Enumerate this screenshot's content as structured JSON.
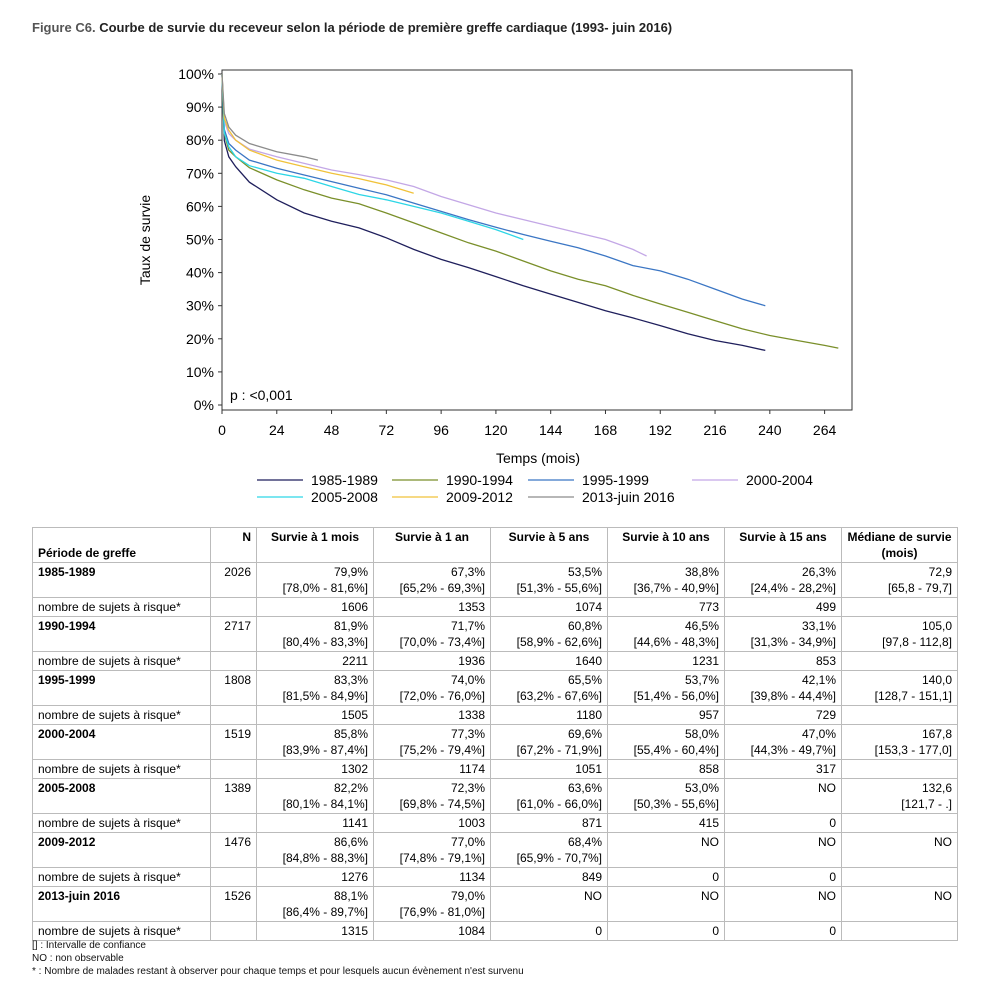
{
  "figure": {
    "number": "Figure C6.",
    "title": "Courbe de survie du receveur selon la période de première greffe cardiaque (1993- juin 2016)"
  },
  "colors": {
    "1985-1989": "#1f1f5c",
    "1990-1994": "#7a8f2a",
    "1995-1999": "#3b76c4",
    "2000-2004": "#c3a7e6",
    "2005-2008": "#2dd6e6",
    "2009-2012": "#f0c23a",
    "2013-juin 2016": "#8c8c8c"
  },
  "chart_data": {
    "type": "line",
    "xlabel": "Temps (mois)",
    "ylabel": "Taux de survie",
    "xlim": [
      0,
      276
    ],
    "ylim": [
      0,
      100
    ],
    "x_ticks": [
      "0",
      "24",
      "48",
      "72",
      "96",
      "120",
      "144",
      "168",
      "192",
      "216",
      "240",
      "264"
    ],
    "y_ticks": [
      "0%",
      "10%",
      "20%",
      "30%",
      "40%",
      "50%",
      "60%",
      "70%",
      "80%",
      "90%",
      "100%"
    ],
    "annotation": "p : <0,001",
    "legend_position": "bottom",
    "series": [
      {
        "name": "1985-1989",
        "points": [
          [
            0,
            100
          ],
          [
            1,
            79.9
          ],
          [
            3,
            75
          ],
          [
            6,
            72
          ],
          [
            12,
            67.3
          ],
          [
            24,
            62
          ],
          [
            36,
            58
          ],
          [
            48,
            55.5
          ],
          [
            60,
            53.5
          ],
          [
            72,
            50.5
          ],
          [
            84,
            47
          ],
          [
            96,
            44
          ],
          [
            108,
            41.5
          ],
          [
            120,
            38.8
          ],
          [
            132,
            36
          ],
          [
            144,
            33.5
          ],
          [
            156,
            31
          ],
          [
            168,
            28.5
          ],
          [
            180,
            26.3
          ],
          [
            192,
            24
          ],
          [
            204,
            21.5
          ],
          [
            216,
            19.5
          ],
          [
            228,
            18
          ],
          [
            238,
            16.5
          ]
        ]
      },
      {
        "name": "1990-1994",
        "points": [
          [
            0,
            100
          ],
          [
            1,
            81.9
          ],
          [
            3,
            77
          ],
          [
            6,
            75
          ],
          [
            12,
            71.7
          ],
          [
            24,
            68
          ],
          [
            36,
            65
          ],
          [
            48,
            62.5
          ],
          [
            60,
            60.8
          ],
          [
            72,
            58
          ],
          [
            84,
            55
          ],
          [
            96,
            52
          ],
          [
            108,
            49
          ],
          [
            120,
            46.5
          ],
          [
            132,
            43.5
          ],
          [
            144,
            40.5
          ],
          [
            156,
            38
          ],
          [
            168,
            36
          ],
          [
            180,
            33.1
          ],
          [
            192,
            30.5
          ],
          [
            204,
            28
          ],
          [
            216,
            25.5
          ],
          [
            228,
            23
          ],
          [
            240,
            21
          ],
          [
            252,
            19.5
          ],
          [
            264,
            18
          ],
          [
            270,
            17.2
          ]
        ]
      },
      {
        "name": "1995-1999",
        "points": [
          [
            0,
            100
          ],
          [
            1,
            83.3
          ],
          [
            3,
            79
          ],
          [
            6,
            77
          ],
          [
            12,
            74
          ],
          [
            24,
            71.5
          ],
          [
            36,
            69.5
          ],
          [
            48,
            67.5
          ],
          [
            60,
            65.5
          ],
          [
            72,
            63.5
          ],
          [
            84,
            61
          ],
          [
            96,
            58.5
          ],
          [
            108,
            56
          ],
          [
            120,
            53.7
          ],
          [
            132,
            51.5
          ],
          [
            144,
            49.5
          ],
          [
            156,
            47.5
          ],
          [
            168,
            45
          ],
          [
            180,
            42.1
          ],
          [
            192,
            40.5
          ],
          [
            204,
            38
          ],
          [
            216,
            35
          ],
          [
            228,
            32
          ],
          [
            238,
            30
          ]
        ]
      },
      {
        "name": "2000-2004",
        "points": [
          [
            0,
            100
          ],
          [
            1,
            85.8
          ],
          [
            3,
            82
          ],
          [
            6,
            80
          ],
          [
            12,
            77.3
          ],
          [
            24,
            75
          ],
          [
            36,
            73
          ],
          [
            48,
            71
          ],
          [
            60,
            69.6
          ],
          [
            72,
            68
          ],
          [
            84,
            66
          ],
          [
            96,
            63
          ],
          [
            108,
            60.5
          ],
          [
            120,
            58
          ],
          [
            132,
            56
          ],
          [
            144,
            54
          ],
          [
            156,
            52
          ],
          [
            168,
            50
          ],
          [
            180,
            47
          ],
          [
            186,
            45
          ]
        ]
      },
      {
        "name": "2005-2008",
        "points": [
          [
            0,
            100
          ],
          [
            1,
            82.2
          ],
          [
            3,
            78
          ],
          [
            6,
            75
          ],
          [
            12,
            72.3
          ],
          [
            24,
            70
          ],
          [
            36,
            68.5
          ],
          [
            48,
            66
          ],
          [
            60,
            63.6
          ],
          [
            72,
            62
          ],
          [
            84,
            60
          ],
          [
            96,
            58
          ],
          [
            108,
            55.5
          ],
          [
            120,
            53
          ],
          [
            132,
            50
          ]
        ]
      },
      {
        "name": "2009-2012",
        "points": [
          [
            0,
            100
          ],
          [
            1,
            86.6
          ],
          [
            3,
            83
          ],
          [
            6,
            80
          ],
          [
            12,
            77
          ],
          [
            24,
            74
          ],
          [
            36,
            72
          ],
          [
            48,
            70
          ],
          [
            60,
            68.4
          ],
          [
            72,
            66.5
          ],
          [
            84,
            64
          ]
        ]
      },
      {
        "name": "2013-juin 2016",
        "points": [
          [
            0,
            100
          ],
          [
            1,
            88.1
          ],
          [
            3,
            84
          ],
          [
            6,
            81.5
          ],
          [
            12,
            79
          ],
          [
            24,
            76.5
          ],
          [
            36,
            75
          ],
          [
            42,
            74
          ]
        ]
      }
    ]
  },
  "table": {
    "headers": {
      "period": "Période de greffe",
      "n": "N",
      "c1": "Survie à 1 mois",
      "c2": "Survie à 1 an",
      "c3": "Survie à 5 ans",
      "c4": "Survie à 10 ans",
      "c5": "Survie à 15 ans",
      "c6": "Médiane de survie (mois)"
    },
    "risk_label": "nombre de sujets à risque*",
    "rows": [
      {
        "period": "1985-1989",
        "n": "2026",
        "v": [
          "79,9%",
          "67,3%",
          "53,5%",
          "38,8%",
          "26,3%",
          "72,9"
        ],
        "ci": [
          "[78,0% - 81,6%]",
          "[65,2% - 69,3%]",
          "[51,3% - 55,6%]",
          "[36,7% - 40,9%]",
          "[24,4% - 28,2%]",
          "[65,8 - 79,7]"
        ],
        "risk": [
          "1606",
          "1353",
          "1074",
          "773",
          "499"
        ]
      },
      {
        "period": "1990-1994",
        "n": "2717",
        "v": [
          "81,9%",
          "71,7%",
          "60,8%",
          "46,5%",
          "33,1%",
          "105,0"
        ],
        "ci": [
          "[80,4% - 83,3%]",
          "[70,0% - 73,4%]",
          "[58,9% - 62,6%]",
          "[44,6% - 48,3%]",
          "[31,3% - 34,9%]",
          "[97,8 - 112,8]"
        ],
        "risk": [
          "2211",
          "1936",
          "1640",
          "1231",
          "853"
        ]
      },
      {
        "period": "1995-1999",
        "n": "1808",
        "v": [
          "83,3%",
          "74,0%",
          "65,5%",
          "53,7%",
          "42,1%",
          "140,0"
        ],
        "ci": [
          "[81,5% - 84,9%]",
          "[72,0% - 76,0%]",
          "[63,2% - 67,6%]",
          "[51,4% - 56,0%]",
          "[39,8% - 44,4%]",
          "[128,7 - 151,1]"
        ],
        "risk": [
          "1505",
          "1338",
          "1180",
          "957",
          "729"
        ]
      },
      {
        "period": "2000-2004",
        "n": "1519",
        "v": [
          "85,8%",
          "77,3%",
          "69,6%",
          "58,0%",
          "47,0%",
          "167,8"
        ],
        "ci": [
          "[83,9% - 87,4%]",
          "[75,2% - 79,4%]",
          "[67,2% - 71,9%]",
          "[55,4% - 60,4%]",
          "[44,3% - 49,7%]",
          "[153,3 - 177,0]"
        ],
        "risk": [
          "1302",
          "1174",
          "1051",
          "858",
          "317"
        ]
      },
      {
        "period": "2005-2008",
        "n": "1389",
        "v": [
          "82,2%",
          "72,3%",
          "63,6%",
          "53,0%",
          "NO",
          "132,6"
        ],
        "ci": [
          "[80,1% - 84,1%]",
          "[69,8% - 74,5%]",
          "[61,0% - 66,0%]",
          "[50,3% - 55,6%]",
          "",
          "[121,7 - .]"
        ],
        "risk": [
          "1141",
          "1003",
          "871",
          "415",
          "0"
        ]
      },
      {
        "period": "2009-2012",
        "n": "1476",
        "v": [
          "86,6%",
          "77,0%",
          "68,4%",
          "NO",
          "NO",
          "NO"
        ],
        "ci": [
          "[84,8% - 88,3%]",
          "[74,8% - 79,1%]",
          "[65,9% - 70,7%]",
          "",
          "",
          ""
        ],
        "risk": [
          "1276",
          "1134",
          "849",
          "0",
          "0"
        ]
      },
      {
        "period": "2013-juin 2016",
        "n": "1526",
        "v": [
          "88,1%",
          "79,0%",
          "NO",
          "NO",
          "NO",
          "NO"
        ],
        "ci": [
          "[86,4% - 89,7%]",
          "[76,9% - 81,0%]",
          "",
          "",
          "",
          ""
        ],
        "risk": [
          "1315",
          "1084",
          "0",
          "0",
          "0"
        ]
      }
    ]
  },
  "notes": [
    "[] : Intervalle de confiance",
    "NO : non observable",
    "* : Nombre de malades restant à observer pour chaque temps et pour lesquels aucun évènement n'est survenu"
  ]
}
